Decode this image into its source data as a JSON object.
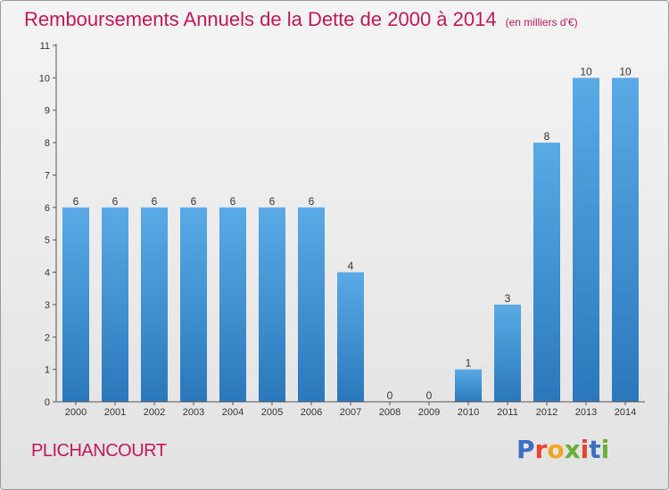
{
  "title": {
    "main": "Remboursements Annuels de la Dette de 2000 à 2014",
    "unit": "(en milliers d'€)"
  },
  "commune": "PLICHANCOURT",
  "logo": {
    "text": "Proxiti",
    "letter_colors": [
      "#3a6fc1",
      "#e8432e",
      "#f2a51f",
      "#6cae3a",
      "#e8432e",
      "#3a6fc1",
      "#6cae3a"
    ]
  },
  "colors": {
    "bar_top": "#5aaae6",
    "bar_bottom": "#2a78bb",
    "title": "#c2185b",
    "axis": "#555555"
  },
  "chart_data": {
    "type": "bar",
    "title": "Remboursements Annuels de la Dette de 2000 à 2014",
    "xlabel": "",
    "ylabel": "",
    "ylim": [
      0,
      11
    ],
    "yticks": [
      0,
      1,
      2,
      3,
      4,
      5,
      6,
      7,
      8,
      9,
      10,
      11
    ],
    "grid": false,
    "categories": [
      "2000",
      "2001",
      "2002",
      "2003",
      "2004",
      "2005",
      "2006",
      "2007",
      "2008",
      "2009",
      "2010",
      "2011",
      "2012",
      "2013",
      "2014"
    ],
    "values": [
      6,
      6,
      6,
      6,
      6,
      6,
      6,
      4,
      0,
      0,
      1,
      3,
      8,
      10,
      10
    ]
  }
}
